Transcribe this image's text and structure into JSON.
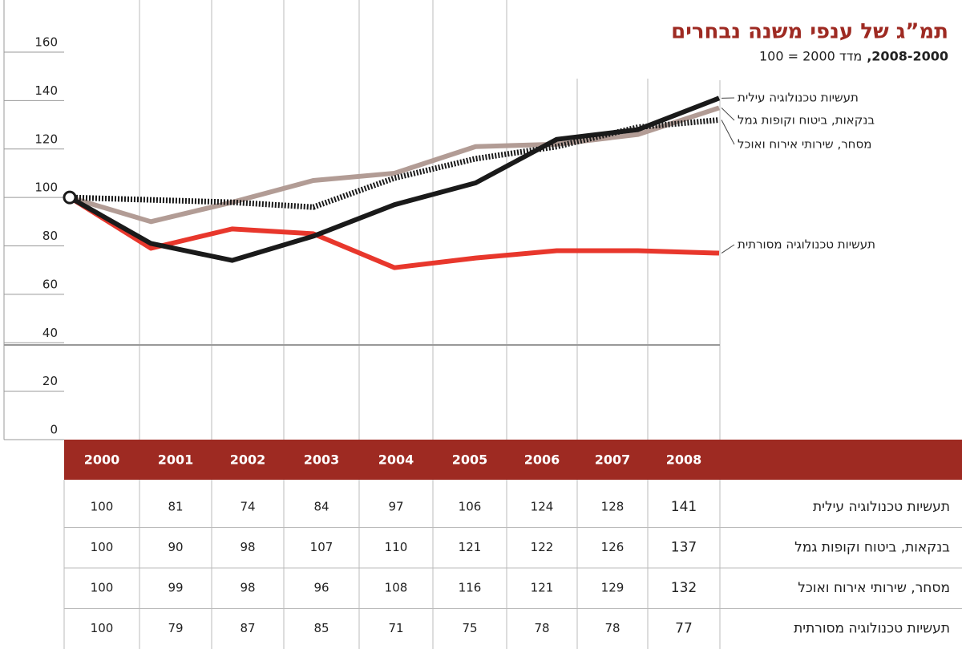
{
  "chart_data": {
    "type": "line",
    "title": "תמ”ג של ענפי משנה נבחרים",
    "subtitle": [
      "2008-2000,",
      "מדד 2000 = 100"
    ],
    "categories": [
      "2000",
      "2001",
      "2002",
      "2003",
      "2004",
      "2005",
      "2006",
      "2007",
      "2008"
    ],
    "series": [
      {
        "name": "תעשיות טכנולוגיה עילית",
        "color": "#1a1a1a",
        "values": [
          100,
          81,
          74,
          84,
          97,
          106,
          124,
          128,
          141
        ]
      },
      {
        "name": "בנקאות, ביטוח וקופות גמל",
        "color": "#b29c95",
        "values": [
          100,
          90,
          98,
          107,
          110,
          121,
          122,
          126,
          137
        ]
      },
      {
        "name": "מסחר, שירותי אירוח ואוכל",
        "color": "#1a1a1a",
        "style": "dotted",
        "values": [
          100,
          99,
          98,
          96,
          108,
          116,
          121,
          129,
          132
        ]
      },
      {
        "name": "תעשיות טכנולוגיה מסורתית",
        "color": "#e8372c",
        "values": [
          100,
          79,
          87,
          85,
          71,
          75,
          78,
          78,
          77
        ]
      }
    ],
    "ylim": [
      0,
      160
    ],
    "yticks": [
      0,
      20,
      40,
      60,
      80,
      100,
      120,
      140,
      160
    ]
  }
}
